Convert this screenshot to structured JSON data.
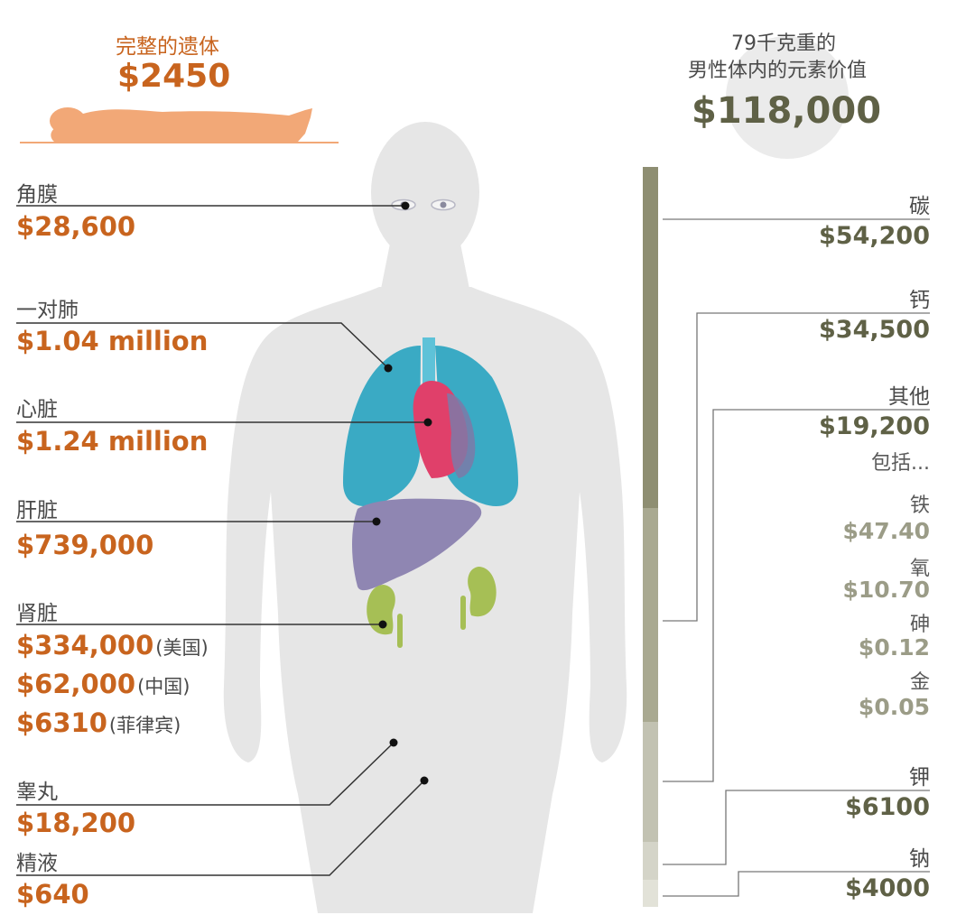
{
  "whole_body": {
    "label": "完整的遗体",
    "price": "$2450"
  },
  "elements_header": {
    "line1": "79千克重的",
    "line2": "男性体内的元素价值",
    "total": "$118,000"
  },
  "organs": [
    {
      "name": "角膜",
      "price": "$28,600"
    },
    {
      "name": "一对肺",
      "price": "$1.04 million"
    },
    {
      "name": "心脏",
      "price": "$1.24 million"
    },
    {
      "name": "肝脏",
      "price": "$739,000"
    },
    {
      "name": "肾脏",
      "prices": [
        {
          "value": "$334,000",
          "note": "(美国)"
        },
        {
          "value": "$62,000",
          "note": "(中国)"
        },
        {
          "value": "$6310",
          "note": "(菲律宾)"
        }
      ]
    },
    {
      "name": "睾丸",
      "price": "$18,200"
    },
    {
      "name": "精液",
      "price": "$640"
    }
  ],
  "elements": [
    {
      "name": "碳",
      "price": "$54,200"
    },
    {
      "name": "钙",
      "price": "$34,500"
    },
    {
      "name": "其他",
      "price": "$19,200",
      "includes_label": "包括...",
      "includes": [
        {
          "name": "铁",
          "price": "$47.40"
        },
        {
          "name": "氧",
          "price": "$10.70"
        },
        {
          "name": "砷",
          "price": "$0.12"
        },
        {
          "name": "金",
          "price": "$0.05"
        }
      ]
    },
    {
      "name": "钾",
      "price": "$6100"
    },
    {
      "name": "钠",
      "price": "$4000"
    }
  ],
  "colors": {
    "organ_price": "#c8641e",
    "element_price": "#5f6146",
    "sub_element_price": "#9b9c87",
    "lungs": "#3aaac4",
    "heart": "#e0406a",
    "liver": "#8f86b2",
    "kidneys": "#a6bf55",
    "body_silhouette": "#e6e6e6",
    "lying_body": "#f2a877"
  }
}
